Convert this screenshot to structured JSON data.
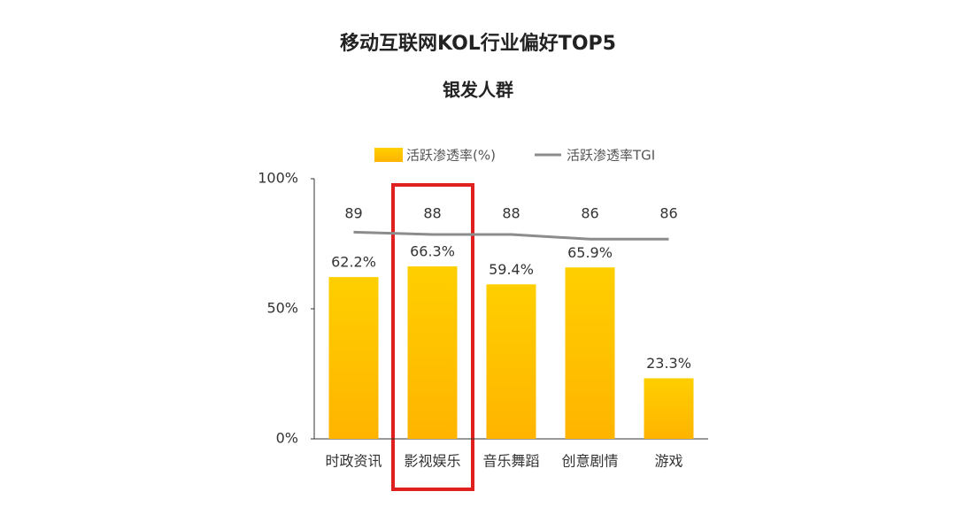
{
  "chart_data": {
    "type": "bar_line",
    "title": "移动互联网KOL行业偏好TOP5",
    "subtitle": "银发人群",
    "categories": [
      "时政资讯",
      "影视娱乐",
      "音乐舞蹈",
      "创意剧情",
      "游戏"
    ],
    "series": [
      {
        "name": "活跃渗透率(%)",
        "type": "bar",
        "color": "#ffc200",
        "values": [
          62.2,
          66.3,
          59.4,
          65.9,
          23.3
        ],
        "value_labels": [
          "62.2%",
          "66.3%",
          "59.4%",
          "65.9%",
          "23.3%"
        ]
      },
      {
        "name": "活跃渗透率TGI",
        "type": "line",
        "color": "#8c8c8c",
        "axis": "y2",
        "values": [
          89,
          88,
          88,
          86,
          86
        ]
      }
    ],
    "ylim": [
      0,
      100
    ],
    "yticks": [
      {
        "value": 0,
        "label": "0%"
      },
      {
        "value": 50,
        "label": "50%"
      },
      {
        "value": 100,
        "label": "100%"
      }
    ],
    "y2lim": [
      0,
      112
    ],
    "legend": "top"
  }
}
